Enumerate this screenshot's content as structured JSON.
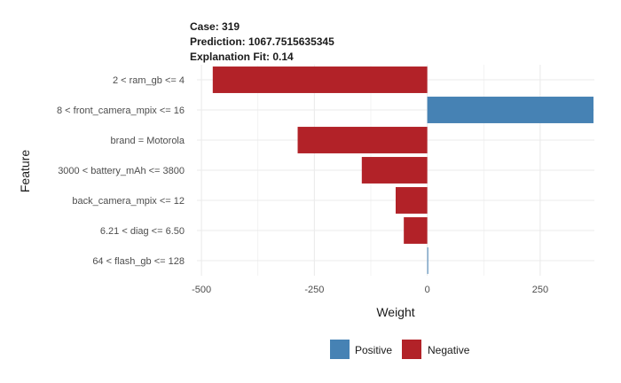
{
  "header": {
    "case": "Case: 319",
    "prediction": "Prediction: 1067.7515635345",
    "fit": "Explanation Fit: 0.14"
  },
  "chart_data": {
    "type": "bar",
    "orientation": "horizontal",
    "xlabel": "Weight",
    "ylabel": "Feature",
    "xlim": [
      -510,
      370
    ],
    "x_ticks": [
      -500,
      -250,
      0,
      250
    ],
    "x_tick_labels": [
      "-500",
      "-250",
      "0",
      "250"
    ],
    "grid": true,
    "legend_position": "bottom",
    "colors": {
      "Positive": "#4682b4",
      "Negative": "#b22228"
    },
    "legend": [
      {
        "name": "Positive",
        "color": "#4682b4"
      },
      {
        "name": "Negative",
        "color": "#b22228"
      }
    ],
    "categories": [
      "2 < ram_gb <= 4",
      "8 < front_camera_mpix <= 16",
      "brand = Motorola",
      "3000 < battery_mAh <= 3800",
      "back_camera_mpix <= 12",
      "6.21 < diag <= 6.50",
      "64 < flash_gb <= 128"
    ],
    "values": [
      -475,
      368,
      -287,
      -145,
      -70,
      -52,
      2
    ]
  }
}
